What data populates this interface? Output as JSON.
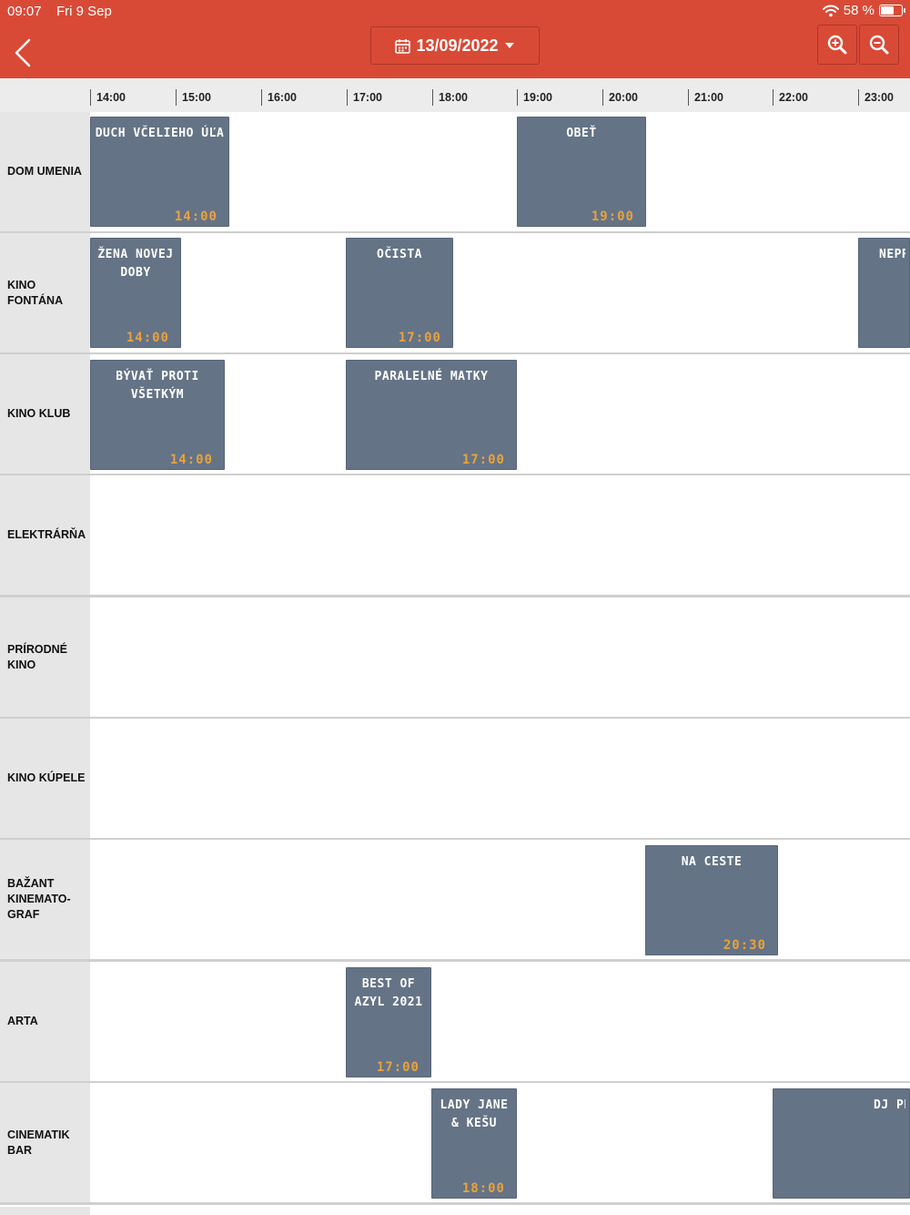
{
  "status_bar": {
    "time": "09:07",
    "date": "Fri 9 Sep",
    "battery": "58 %"
  },
  "header": {
    "date_label": "13/09/2022"
  },
  "timeline": [
    "14:00",
    "15:00",
    "16:00",
    "17:00",
    "18:00",
    "19:00",
    "20:00",
    "21:00",
    "22:00",
    "23:00"
  ],
  "venues": [
    {
      "name": "DOM UMENIA",
      "events": [
        {
          "title": "DUCH VČELIEHO ÚĽA",
          "time": "14:00"
        },
        {
          "title": "OBEŤ",
          "time": "19:00"
        }
      ]
    },
    {
      "name": "KINO FONTÁNA",
      "events": [
        {
          "title": "ŽENA NOVEJ DOBY",
          "time": "14:00"
        },
        {
          "title": "OČISTA",
          "time": "17:00"
        },
        {
          "title": "NEPRI",
          "time": ""
        }
      ]
    },
    {
      "name": "KINO KLUB",
      "events": [
        {
          "title": "BÝVAŤ PROTI VŠETKÝM",
          "time": "14:00"
        },
        {
          "title": "PARALELNÉ MATKY",
          "time": "17:00"
        }
      ]
    },
    {
      "name": "ELEKTRÁRŇA",
      "events": []
    },
    {
      "name": "PRÍRODNÉ KINO",
      "events": []
    },
    {
      "name": "KINO KÚPELE",
      "events": []
    },
    {
      "name": "BAŽANT KINEMATO-GRAF",
      "events": [
        {
          "title": "NA CESTE",
          "time": "20:30"
        }
      ]
    },
    {
      "name": "ARTA",
      "events": [
        {
          "title": "BEST OF AZYL 2021",
          "time": "17:00"
        }
      ]
    },
    {
      "name": "CINEMATIK BAR",
      "events": [
        {
          "title": "LADY JANE & KEŠU",
          "time": "18:00"
        },
        {
          "title": "DJ PET",
          "time": ""
        }
      ]
    }
  ]
}
